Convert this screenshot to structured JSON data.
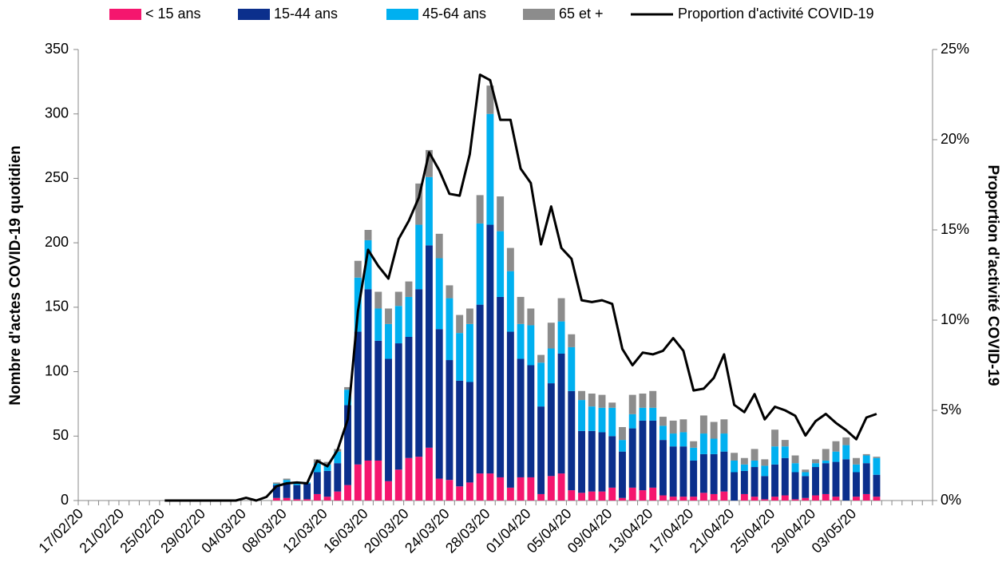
{
  "chart_data": {
    "type": "stacked-bar-line",
    "ylabel": "Nombre d'actes COVID-19 quotidien",
    "y2label": "Proportion d'activité COVID-19",
    "legend": "top",
    "categories": [
      "17/02/20",
      null,
      null,
      null,
      "21/02/20",
      null,
      null,
      null,
      "25/02/20",
      null,
      null,
      null,
      "29/02/20",
      null,
      null,
      null,
      "04/03/20",
      null,
      null,
      null,
      "08/03/20",
      null,
      null,
      null,
      "12/03/20",
      null,
      null,
      null,
      "16/03/20",
      null,
      null,
      null,
      "20/03/20",
      null,
      null,
      null,
      "24/03/20",
      null,
      null,
      null,
      "28/03/20",
      null,
      null,
      null,
      "01/04/20",
      null,
      null,
      null,
      "05/04/20",
      null,
      null,
      null,
      "09/04/20",
      null,
      null,
      null,
      "13/04/20",
      null,
      null,
      null,
      "17/04/20",
      null,
      null,
      null,
      "21/04/20",
      null,
      null,
      null,
      "25/04/20",
      null,
      null,
      null,
      "29/04/20",
      null,
      null,
      null,
      "03/05/20",
      null,
      null,
      null,
      null,
      null,
      null,
      null
    ],
    "series": [
      {
        "name": "< 15 ans",
        "color": "#f5166e",
        "values": [
          null,
          null,
          null,
          null,
          null,
          null,
          null,
          null,
          null,
          null,
          null,
          null,
          null,
          null,
          null,
          null,
          null,
          null,
          null,
          2,
          2,
          1,
          1,
          5,
          3,
          7,
          12,
          28,
          31,
          31,
          15,
          24,
          33,
          34,
          41,
          17,
          16,
          11,
          14,
          21,
          21,
          18,
          10,
          18,
          18,
          5,
          19,
          21,
          8,
          6,
          7,
          7,
          10,
          2,
          10,
          8,
          10,
          4,
          3,
          3,
          3,
          6,
          5,
          7,
          0,
          5,
          3,
          1,
          3,
          4,
          1,
          2,
          4,
          5,
          3,
          0,
          3,
          5,
          3,
          null,
          null,
          null,
          null,
          null
        ]
      },
      {
        "name": "15-44 ans",
        "color": "#0b2f8c",
        "values": [
          null,
          null,
          null,
          null,
          null,
          null,
          null,
          null,
          null,
          null,
          null,
          null,
          null,
          null,
          null,
          null,
          null,
          null,
          null,
          10,
          12,
          11,
          12,
          17,
          20,
          22,
          62,
          103,
          133,
          93,
          95,
          98,
          94,
          130,
          157,
          116,
          93,
          82,
          78,
          131,
          193,
          140,
          121,
          92,
          87,
          68,
          72,
          93,
          77,
          48,
          47,
          46,
          40,
          36,
          46,
          54,
          52,
          43,
          39,
          39,
          28,
          30,
          31,
          31,
          22,
          18,
          23,
          18,
          25,
          29,
          21,
          17,
          22,
          24,
          27,
          32,
          19,
          24,
          17,
          null,
          null,
          null,
          null,
          null
        ]
      },
      {
        "name": "45-64 ans",
        "color": "#00b0f0",
        "values": [
          null,
          null,
          null,
          null,
          null,
          null,
          null,
          null,
          null,
          null,
          null,
          null,
          null,
          null,
          null,
          null,
          null,
          null,
          null,
          1,
          2,
          1,
          1,
          7,
          5,
          9,
          12,
          42,
          38,
          25,
          27,
          29,
          31,
          50,
          53,
          55,
          48,
          37,
          45,
          63,
          86,
          51,
          47,
          27,
          31,
          34,
          27,
          25,
          34,
          24,
          19,
          19,
          22,
          9,
          11,
          10,
          10,
          11,
          10,
          11,
          10,
          16,
          12,
          14,
          9,
          5,
          5,
          8,
          14,
          9,
          7,
          3,
          3,
          2,
          8,
          11,
          6,
          6,
          13,
          null,
          null,
          null,
          null,
          null
        ]
      },
      {
        "name": "65 et +",
        "color": "#8c8c8c",
        "values": [
          null,
          null,
          null,
          null,
          null,
          null,
          null,
          null,
          null,
          null,
          null,
          null,
          null,
          null,
          null,
          null,
          null,
          null,
          null,
          1,
          1,
          0,
          0,
          3,
          2,
          2,
          2,
          13,
          8,
          13,
          12,
          11,
          12,
          32,
          21,
          19,
          10,
          14,
          12,
          22,
          22,
          27,
          18,
          21,
          13,
          6,
          20,
          18,
          10,
          7,
          10,
          10,
          4,
          10,
          15,
          11,
          13,
          7,
          10,
          10,
          5,
          14,
          13,
          11,
          6,
          5,
          9,
          5,
          13,
          5,
          6,
          2,
          3,
          9,
          8,
          6,
          5,
          1,
          1,
          null,
          null,
          null,
          null,
          null
        ]
      },
      {
        "name": "Proportion d'activité COVID-19",
        "color": "#000000",
        "axis": "y2",
        "type": "line",
        "values": [
          null,
          null,
          null,
          null,
          null,
          null,
          null,
          null,
          0,
          0,
          0,
          0,
          0,
          0,
          0,
          0,
          0.15,
          0,
          0.2,
          0.8,
          0.95,
          1.0,
          0.95,
          2.2,
          1.9,
          2.8,
          4.5,
          10.5,
          13.9,
          13.0,
          12.3,
          14.5,
          15.5,
          16.8,
          19.3,
          18.3,
          17.0,
          16.9,
          19.2,
          23.6,
          23.3,
          21.1,
          21.1,
          18.4,
          17.6,
          14.2,
          16.3,
          14.0,
          13.4,
          11.1,
          11.0,
          11.1,
          10.9,
          8.4,
          7.5,
          8.2,
          8.1,
          8.3,
          9.0,
          8.3,
          6.1,
          6.2,
          6.8,
          8.1,
          5.3,
          4.9,
          5.9,
          4.5,
          5.2,
          5.0,
          4.7,
          3.6,
          4.4,
          4.8,
          4.3,
          3.9,
          3.4,
          4.6,
          4.8,
          null,
          null,
          null,
          null,
          null
        ]
      }
    ],
    "ylim": [
      0,
      350
    ],
    "yticks": [
      0,
      50,
      100,
      150,
      200,
      250,
      300,
      350
    ],
    "y2lim": [
      0,
      25
    ],
    "y2ticks": [
      {
        "value": 0,
        "label": "0%"
      },
      {
        "value": 5,
        "label": "5%"
      },
      {
        "value": 10,
        "label": "10%"
      },
      {
        "value": 15,
        "label": "15%"
      },
      {
        "value": 20,
        "label": "20%"
      },
      {
        "value": 25,
        "label": "25%"
      }
    ],
    "grid": false
  }
}
